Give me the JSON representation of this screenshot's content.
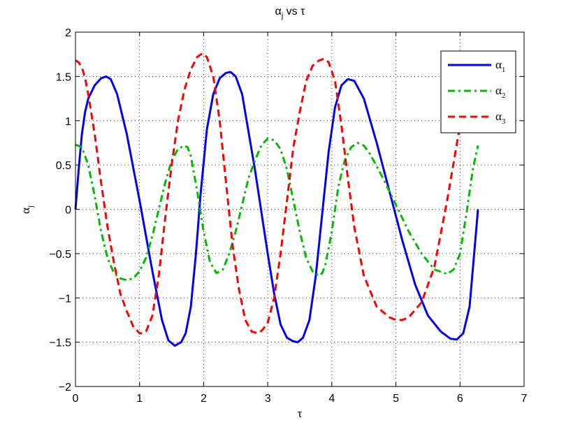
{
  "chart_data": {
    "type": "line",
    "title": "αj vs τ",
    "title_parts": {
      "base": "α",
      "sub": "j",
      "rest": " vs τ"
    },
    "xlabel": "τ",
    "ylabel_parts": {
      "base": "α",
      "sub": "j"
    },
    "xlim": [
      0,
      7
    ],
    "ylim": [
      -2,
      2
    ],
    "xticks": [
      "0",
      "1",
      "2",
      "3",
      "4",
      "5",
      "6",
      "7"
    ],
    "yticks": [
      "2",
      "1.5",
      "1",
      "0.5",
      "0",
      "−0.5",
      "−1",
      "−1.5",
      "−2"
    ],
    "grid": true,
    "legend_position": "top-right",
    "series": [
      {
        "name": "α1",
        "name_base": "α",
        "name_sub": "1",
        "color": "#0000ff",
        "dash": "solid",
        "width": 3,
        "x": [
          0,
          0.05,
          0.1,
          0.15,
          0.2,
          0.3,
          0.4,
          0.48,
          0.55,
          0.65,
          0.8,
          1.0,
          1.2,
          1.35,
          1.45,
          1.55,
          1.65,
          1.72,
          1.8,
          1.88,
          1.95,
          2.05,
          2.15,
          2.25,
          2.35,
          2.42,
          2.5,
          2.6,
          2.8,
          3.0,
          3.1,
          3.2,
          3.3,
          3.4,
          3.47,
          3.55,
          3.65,
          3.75,
          3.85,
          3.95,
          4.05,
          4.15,
          4.25,
          4.35,
          4.5,
          4.7,
          4.9,
          5.1,
          5.3,
          5.5,
          5.7,
          5.85,
          5.95,
          6.05,
          6.15,
          6.28
        ],
        "y": [
          0,
          0.45,
          0.85,
          1.1,
          1.25,
          1.4,
          1.48,
          1.5,
          1.47,
          1.3,
          0.85,
          0.1,
          -0.7,
          -1.25,
          -1.48,
          -1.54,
          -1.5,
          -1.4,
          -1.1,
          -0.5,
          0.15,
          0.9,
          1.3,
          1.48,
          1.54,
          1.55,
          1.5,
          1.3,
          0.45,
          -0.5,
          -0.95,
          -1.3,
          -1.45,
          -1.49,
          -1.5,
          -1.45,
          -1.25,
          -0.75,
          -0.05,
          0.65,
          1.15,
          1.4,
          1.47,
          1.45,
          1.25,
          0.75,
          0.2,
          -0.35,
          -0.85,
          -1.2,
          -1.38,
          -1.46,
          -1.47,
          -1.4,
          -1.1,
          0
        ]
      },
      {
        "name": "α2",
        "name_base": "α",
        "name_sub": "2",
        "color": "#00bb00",
        "dash": "dashdot",
        "width": 3,
        "x": [
          0,
          0.1,
          0.2,
          0.3,
          0.4,
          0.5,
          0.6,
          0.7,
          0.8,
          0.9,
          1.0,
          1.1,
          1.2,
          1.3,
          1.4,
          1.5,
          1.6,
          1.7,
          1.75,
          1.8,
          1.9,
          2.0,
          2.1,
          2.2,
          2.3,
          2.4,
          2.5,
          2.6,
          2.7,
          2.8,
          2.9,
          3.0,
          3.1,
          3.2,
          3.3,
          3.4,
          3.5,
          3.6,
          3.7,
          3.8,
          3.85,
          3.9,
          4.0,
          4.1,
          4.2,
          4.3,
          4.4,
          4.5,
          4.6,
          4.8,
          5.0,
          5.2,
          5.4,
          5.6,
          5.8,
          5.9,
          6.0,
          6.1,
          6.2,
          6.28
        ],
        "y": [
          0.73,
          0.7,
          0.5,
          0.15,
          -0.25,
          -0.55,
          -0.72,
          -0.78,
          -0.8,
          -0.78,
          -0.7,
          -0.55,
          -0.3,
          0.0,
          0.3,
          0.55,
          0.68,
          0.72,
          0.7,
          0.6,
          0.2,
          -0.25,
          -0.6,
          -0.72,
          -0.68,
          -0.5,
          -0.25,
          0.05,
          0.35,
          0.55,
          0.72,
          0.8,
          0.78,
          0.68,
          0.45,
          0.1,
          -0.25,
          -0.55,
          -0.7,
          -0.75,
          -0.72,
          -0.62,
          -0.25,
          0.25,
          0.55,
          0.7,
          0.75,
          0.72,
          0.62,
          0.35,
          0.05,
          -0.25,
          -0.5,
          -0.68,
          -0.73,
          -0.68,
          -0.5,
          -0.05,
          0.45,
          0.72
        ]
      },
      {
        "name": "α3",
        "name_base": "α",
        "name_sub": "3",
        "color": "#ff0000",
        "dash": "dashed",
        "width": 3,
        "x": [
          0,
          0.05,
          0.1,
          0.15,
          0.2,
          0.3,
          0.4,
          0.5,
          0.6,
          0.7,
          0.8,
          0.9,
          1.0,
          1.05,
          1.1,
          1.2,
          1.3,
          1.4,
          1.5,
          1.6,
          1.7,
          1.8,
          1.9,
          1.98,
          2.05,
          2.15,
          2.25,
          2.35,
          2.45,
          2.55,
          2.65,
          2.75,
          2.85,
          2.92,
          3.0,
          3.1,
          3.2,
          3.3,
          3.4,
          3.5,
          3.6,
          3.7,
          3.8,
          3.88,
          3.95,
          4.05,
          4.15,
          4.25,
          4.35,
          4.5,
          4.7,
          4.9,
          5.0,
          5.1,
          5.2,
          5.4,
          5.6,
          5.8,
          6.0,
          6.2,
          6.28
        ],
        "y": [
          1.68,
          1.66,
          1.6,
          1.48,
          1.3,
          0.85,
          0.3,
          -0.2,
          -0.6,
          -0.95,
          -1.15,
          -1.32,
          -1.4,
          -1.4,
          -1.38,
          -1.2,
          -0.75,
          -0.1,
          0.5,
          1.0,
          1.35,
          1.58,
          1.72,
          1.76,
          1.72,
          1.5,
          1.0,
          0.3,
          -0.4,
          -0.9,
          -1.25,
          -1.38,
          -1.4,
          -1.36,
          -1.28,
          -1.0,
          -0.5,
          0.1,
          0.7,
          1.1,
          1.45,
          1.62,
          1.68,
          1.7,
          1.66,
          1.45,
          0.95,
          0.35,
          -0.2,
          -0.75,
          -1.1,
          -1.22,
          -1.25,
          -1.25,
          -1.22,
          -1.05,
          -0.65,
          0.1,
          0.95,
          1.6,
          1.65
        ]
      }
    ]
  }
}
